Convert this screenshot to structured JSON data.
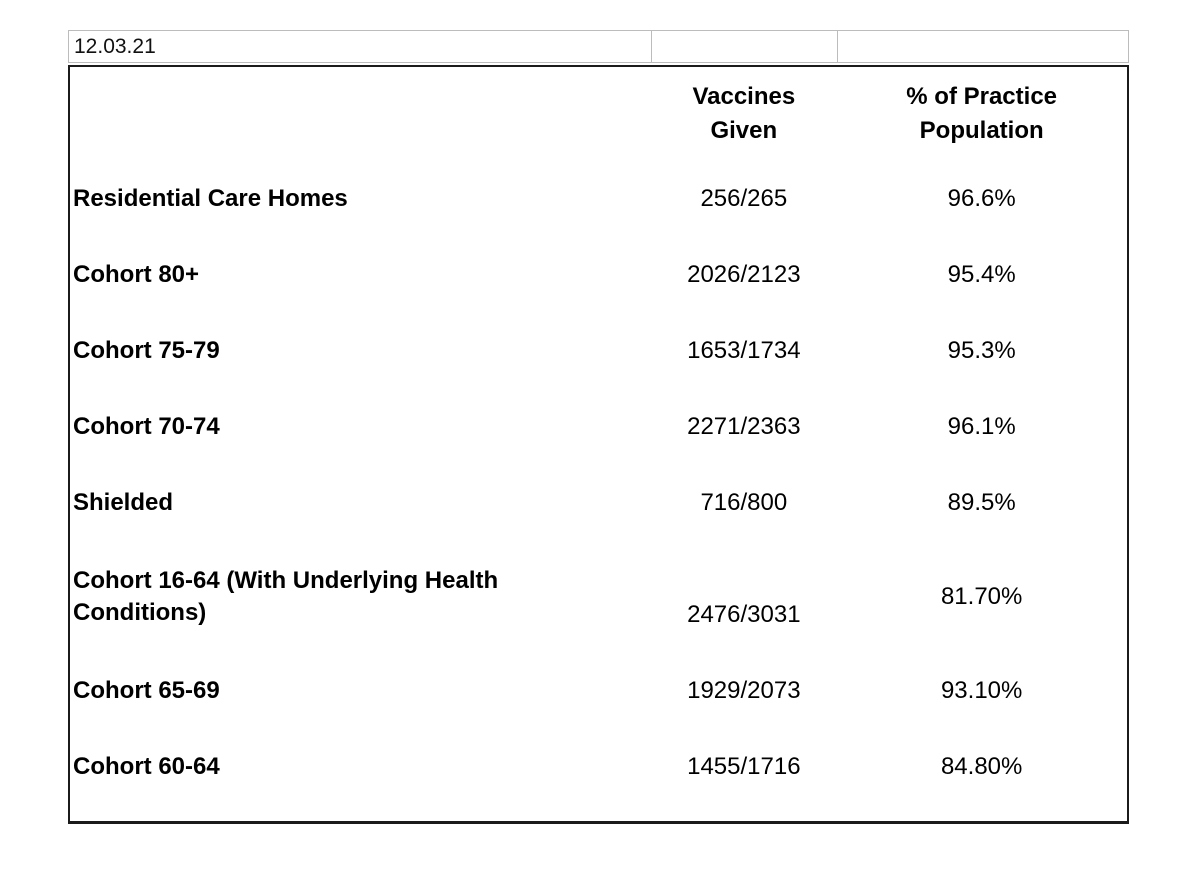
{
  "spreadsheet_row": {
    "date_cell": "12.03.21",
    "empty_cell_1": "",
    "empty_cell_2": ""
  },
  "table": {
    "header": {
      "label": "",
      "vaccines": "Vaccines\nGiven",
      "population": "% of Practice\nPopulation"
    },
    "rows": [
      {
        "label": "Residential Care Homes",
        "vaccines_given": "256/265",
        "pct_of_practice_population": "96.6%"
      },
      {
        "label": "Cohort 80+",
        "vaccines_given": "2026/2123",
        "pct_of_practice_population": "95.4%"
      },
      {
        "label": "Cohort 75-79",
        "vaccines_given": "1653/1734",
        "pct_of_practice_population": "95.3%"
      },
      {
        "label": "Cohort 70-74",
        "vaccines_given": "2271/2363",
        "pct_of_practice_population": "96.1%"
      },
      {
        "label": "Shielded",
        "vaccines_given": "716/800",
        "pct_of_practice_population": "89.5%"
      },
      {
        "label": "Cohort 16-64 (With Underlying Health Conditions)",
        "vaccines_given": "2476/3031",
        "pct_of_practice_population": "81.70%"
      },
      {
        "label": "Cohort 65-69",
        "vaccines_given": "1929/2073",
        "pct_of_practice_population": "93.10%"
      },
      {
        "label": "Cohort 60-64",
        "vaccines_given": "1455/1716",
        "pct_of_practice_population": "84.80%"
      }
    ]
  },
  "colors": {
    "text": "#000000",
    "main_border": "#1b1b1b",
    "cell_border": "#bcbcbc",
    "background": "#ffffff"
  }
}
